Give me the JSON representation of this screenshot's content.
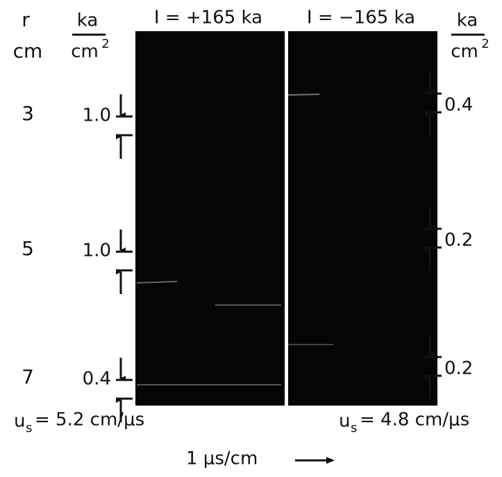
{
  "left_header": {
    "radius_label": "r",
    "radius_unit": "cm",
    "unit_numerator": "ka",
    "unit_denominator": "cm",
    "unit_exponent": "2"
  },
  "right_header": {
    "unit_numerator": "ka",
    "unit_denominator": "cm",
    "unit_exponent": "2"
  },
  "panels": [
    {
      "title": "I = +165 ka"
    },
    {
      "title": "I = −165 ka"
    }
  ],
  "rows": [
    {
      "radius": "3",
      "left_value": "1.0",
      "right_value": "0.4"
    },
    {
      "radius": "5",
      "left_value": "1.0",
      "right_value": "0.2"
    },
    {
      "radius": "7",
      "left_value": "0.4",
      "right_value": "0.2"
    }
  ],
  "speeds": [
    {
      "symbol": "u",
      "subscript": "s",
      "text": "= 5.2 cm/μs"
    },
    {
      "symbol": "u",
      "subscript": "s",
      "text": "= 4.8 cm/μs"
    }
  ],
  "time_scale": "1 μs/cm"
}
